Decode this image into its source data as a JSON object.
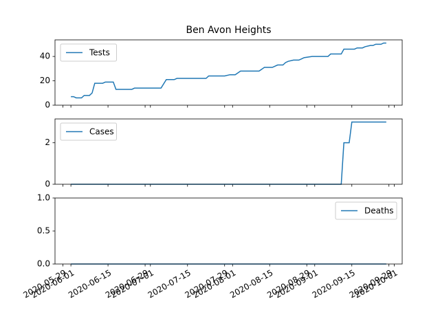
{
  "chart_data": [
    {
      "type": "line",
      "title": "Ben Avon Heights",
      "x": [
        "2020-06-01",
        "2020-06-02",
        "2020-06-03",
        "2020-06-05",
        "2020-06-06",
        "2020-06-08",
        "2020-06-09",
        "2020-06-10",
        "2020-06-13",
        "2020-06-14",
        "2020-06-17",
        "2020-06-18",
        "2020-06-24",
        "2020-06-25",
        "2020-07-05",
        "2020-07-07",
        "2020-07-10",
        "2020-07-11",
        "2020-07-22",
        "2020-07-23",
        "2020-07-29",
        "2020-07-31",
        "2020-08-02",
        "2020-08-04",
        "2020-08-11",
        "2020-08-13",
        "2020-08-16",
        "2020-08-18",
        "2020-08-20",
        "2020-08-21",
        "2020-08-22",
        "2020-08-24",
        "2020-08-26",
        "2020-08-27",
        "2020-08-28",
        "2020-08-31",
        "2020-09-06",
        "2020-09-07",
        "2020-09-10",
        "2020-09-11",
        "2020-09-12",
        "2020-09-14",
        "2020-09-15",
        "2020-09-16",
        "2020-09-17",
        "2020-09-19",
        "2020-09-20",
        "2020-09-22",
        "2020-09-23",
        "2020-09-24",
        "2020-09-26",
        "2020-09-27",
        "2020-09-28"
      ],
      "series": [
        {
          "name": "Tests",
          "color": "#1f77b4",
          "values": [
            7,
            7,
            6,
            6,
            8,
            8,
            10,
            18,
            18,
            19,
            19,
            13,
            13,
            14,
            14,
            21,
            21,
            22,
            22,
            24,
            24,
            25,
            25,
            28,
            28,
            31,
            31,
            33,
            33,
            35,
            36,
            37,
            37,
            38,
            39,
            40,
            40,
            42,
            42,
            42,
            46,
            46,
            46,
            46,
            47,
            47,
            48,
            49,
            49,
            50,
            50,
            51,
            51
          ]
        }
      ],
      "xlim": [
        "2020-05-26",
        "2020-10-04"
      ],
      "ylim": [
        0,
        53.6
      ],
      "yticks": [
        0,
        20,
        40
      ],
      "legend": "upper left"
    },
    {
      "type": "line",
      "x": [
        "2020-06-01",
        "2020-09-11",
        "2020-09-12",
        "2020-09-14",
        "2020-09-15",
        "2020-09-28"
      ],
      "series": [
        {
          "name": "Cases",
          "color": "#1f77b4",
          "values": [
            0,
            0,
            2,
            2,
            3,
            3
          ]
        }
      ],
      "xlim": [
        "2020-05-26",
        "2020-10-04"
      ],
      "ylim": [
        0,
        3.15
      ],
      "yticks": [
        0,
        2
      ],
      "legend": "upper left"
    },
    {
      "type": "line",
      "x": [
        "2020-06-01",
        "2020-09-28"
      ],
      "series": [
        {
          "name": "Deaths",
          "color": "#1f77b4",
          "values": [
            0,
            0
          ]
        }
      ],
      "xlim": [
        "2020-05-26",
        "2020-10-04"
      ],
      "ylim": [
        0,
        1
      ],
      "yticks": [
        {
          "value": 0,
          "label": "0.0"
        },
        {
          "value": 0.5,
          "label": "0.5"
        },
        {
          "value": 1,
          "label": "1.0"
        }
      ],
      "xticks": [
        "2020-05-29",
        "2020-06-01",
        "2020-06-15",
        "2020-06-29",
        "2020-07-01",
        "2020-07-15",
        "2020-07-29",
        "2020-08-01",
        "2020-08-15",
        "2020-08-29",
        "2020-09-01",
        "2020-09-15",
        "2020-09-29",
        "2020-10-01"
      ],
      "legend": "upper right"
    }
  ]
}
